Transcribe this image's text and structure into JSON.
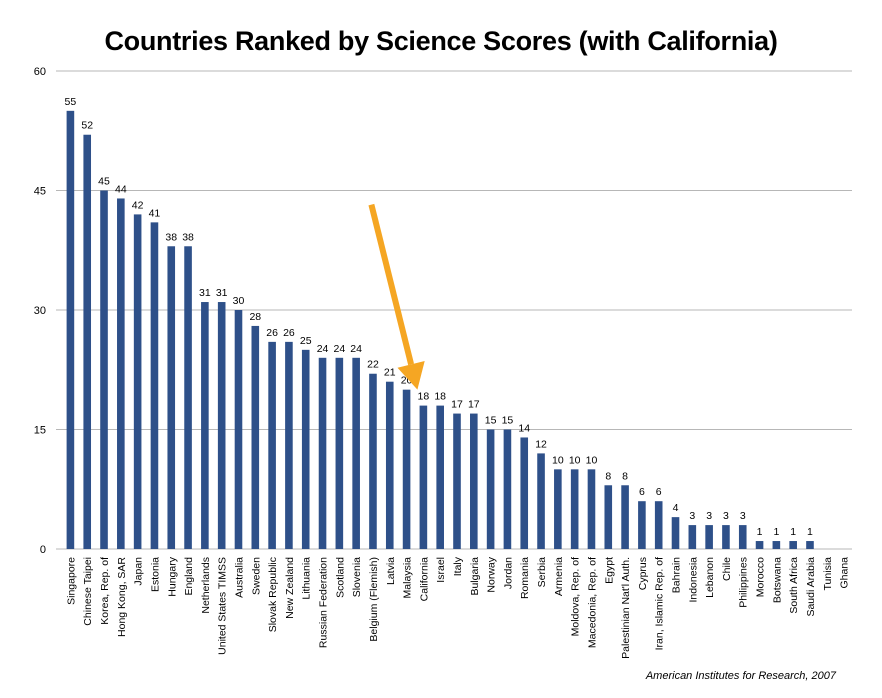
{
  "chart_data": {
    "type": "bar",
    "title": "Countries Ranked by Science Scores (with California)",
    "xlabel": "",
    "ylabel": "",
    "ylim": [
      0,
      60
    ],
    "yticks": [
      0,
      15,
      30,
      45,
      60
    ],
    "grid": true,
    "legend": "none",
    "categories": [
      "Singapore",
      "Chinese Taipei",
      "Korea, Rep. of",
      "Hong Kong, SAR",
      "Japan",
      "Estonia",
      "Hungary",
      "England",
      "Netherlands",
      "United States TIMSS",
      "Australia",
      "Sweden",
      "Slovak Republic",
      "New Zealand",
      "Lithuania",
      "Russian Federation",
      "Scotland",
      "Slovenia",
      "Belgium (Flemish)",
      "Latvia",
      "Malaysia",
      "California",
      "Israel",
      "Italy",
      "Bulgaria",
      "Norway",
      "Jordan",
      "Romania",
      "Serbia",
      "Armenia",
      "Moldova, Rep. of",
      "Macedonia, Rep. of",
      "Egypt",
      "Palestinian Nat'l Auth.",
      "Cyprus",
      "Iran, Islamic Rep. of",
      "Bahrain",
      "Indonesia",
      "Lebanon",
      "Chile",
      "Philippines",
      "Morocco",
      "Botswana",
      "South Africa",
      "Saudi Arabia",
      "Tunisia",
      "Ghana"
    ],
    "values": [
      55,
      52,
      45,
      44,
      42,
      41,
      38,
      38,
      31,
      31,
      30,
      28,
      26,
      26,
      25,
      24,
      24,
      24,
      22,
      21,
      20,
      18,
      18,
      17,
      17,
      15,
      15,
      14,
      12,
      10,
      10,
      10,
      8,
      8,
      6,
      6,
      4,
      3,
      3,
      3,
      3,
      1,
      1,
      1,
      1,
      null,
      null
    ],
    "highlight": {
      "category": "California",
      "marker": "arrow"
    },
    "colors": {
      "bar": "#2e5089",
      "grid": "#b7b7b7",
      "arrow": "#f5a623"
    },
    "source": "American Institutes for Research, 2007"
  }
}
